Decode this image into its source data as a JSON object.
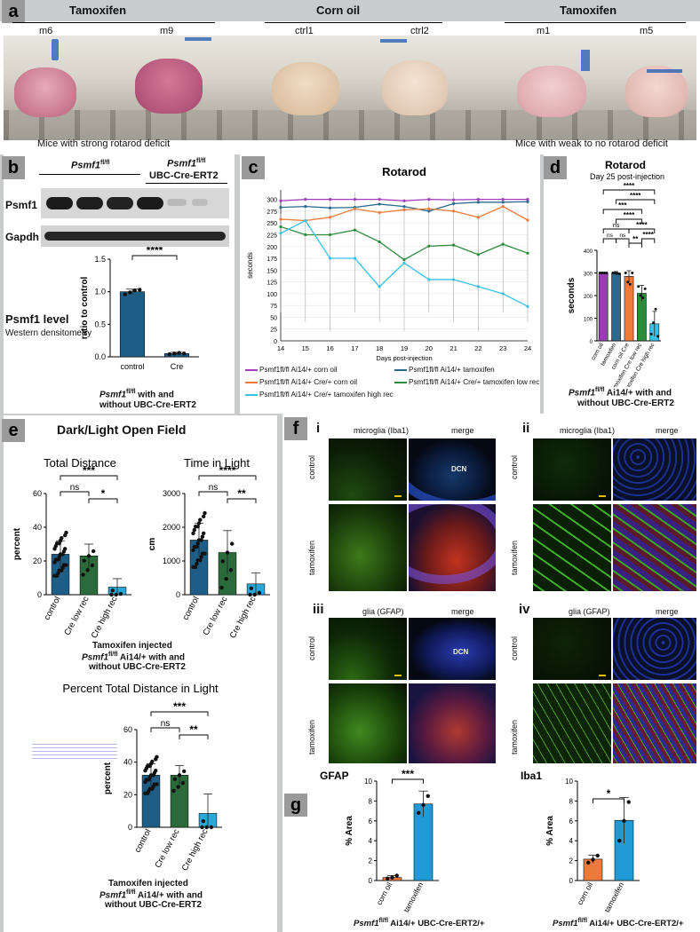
{
  "panel_a": {
    "label": "a",
    "groups": [
      "Tamoxifen",
      "Corn oil",
      "Tamoxifen"
    ],
    "tubes": [
      "m6",
      "m9",
      "ctrl1",
      "ctrl2",
      "m1",
      "m5"
    ],
    "caption_left": "Mice with strong rotarod deficit",
    "caption_right": "Mice with weak to no rotarod deficit"
  },
  "panel_b": {
    "label": "b",
    "genotype1_main": "Psmf1",
    "genotype1_sup": "fl/fl",
    "genotype2_main": "Psmf1",
    "genotype2_sup": "fl/fl",
    "genotype2_line2": "UBC-Cre-ERT2",
    "blot_psmf1": "Psmf1",
    "blot_gapdh": "Gapdh",
    "level_title": "Psmf1 level",
    "level_sub": "Western densitometry",
    "footer_main": "Psmf1",
    "footer_sup": "fl/fl",
    "footer_rest": " with and",
    "footer_line2": "without UBC-Cre-ERT2"
  },
  "panel_c": {
    "label": "c",
    "legend": [
      {
        "name": "Psmf1fl/fl Ai14/+ corn oil",
        "color": "#a23bbd"
      },
      {
        "name": "Psmf1fl/fl Ai14/+ tamoxifen",
        "color": "#2b6a8f"
      },
      {
        "name": "Psmf1fl/fl Ai14/+ Cre/+ corn oil",
        "color": "#ee7b3a"
      },
      {
        "name": "Psmf1fl/fl Ai14/+ Cre/+ tamoxifen low rec",
        "color": "#2e8b3c"
      },
      {
        "name": "Psmf1fl/fl Ai14/+ Cre/+ tamoxifen high rec",
        "color": "#39c1e6"
      }
    ]
  },
  "panel_d": {
    "label": "d",
    "subtitle": "Day 25 post-injection",
    "footer_main": "Psmf1",
    "footer_sup": "fl/fl",
    "footer_rest": " Ai14/+ with and",
    "footer_line2": "without UBC-Cre-ERT2",
    "sig": [
      "****",
      "****",
      "***",
      "****",
      "ns",
      "****",
      "****",
      "ns",
      "ns",
      "ns",
      "**"
    ]
  },
  "panel_e": {
    "label": "e",
    "title": "Dark/Light Open Field",
    "footer_l1": "Tamoxifen injected",
    "footer_main": "Psmf1",
    "footer_sup": "fl/fl",
    "footer_rest": " Ai14/+ with and",
    "footer_l3": "without UBC-Cre-ERT2",
    "sig_dist": [
      "***",
      "ns",
      "*"
    ],
    "sig_time": [
      "****",
      "ns",
      "**"
    ],
    "sig_pct": [
      "***",
      "ns",
      "**"
    ]
  },
  "panel_f": {
    "label": "f",
    "sub_i": "i",
    "sub_ii": "ii",
    "sub_iii": "iii",
    "sub_iv": "iv",
    "micro": "microglia (Iba1)",
    "glia": "glia (GFAP)",
    "merge": "merge",
    "row_control": "control",
    "row_tamoxifen": "tamoxifen",
    "dcn": "DCN"
  },
  "panel_g": {
    "label": "g",
    "sig_gfap": "***",
    "sig_iba1": "*",
    "footer_main": "Psmf1",
    "footer_sup": "fl/fl",
    "footer_rest": " Ai14/+ UBC-Cre-ERT2/+"
  },
  "chart_data": [
    {
      "id": "b",
      "type": "bar",
      "categories": [
        "control",
        "Cre"
      ],
      "values": [
        1.0,
        0.05
      ],
      "errors": [
        0.04,
        0.02
      ],
      "points": [
        [
          0.96,
          0.99,
          1.02,
          1.03
        ],
        [
          0.04,
          0.05,
          0.06,
          0.05
        ]
      ],
      "colors": [
        "#1e5d86",
        "#1e5d86"
      ],
      "title": "",
      "xlabel": "",
      "ylabel": "ratio to control",
      "ylim": [
        0,
        1.5
      ],
      "yticks": [
        0.0,
        0.5,
        1.0,
        1.5
      ],
      "sig": "****"
    },
    {
      "id": "c",
      "type": "line",
      "title": "Rotarod",
      "xlabel": "Days post-injection",
      "ylabel": "seconds",
      "x": [
        14,
        15,
        16,
        17,
        18,
        19,
        20,
        21,
        22,
        23,
        24
      ],
      "xlim": [
        14,
        24
      ],
      "ylim": [
        0,
        320
      ],
      "yticks": [
        0,
        25,
        50,
        75,
        100,
        125,
        150,
        175,
        200,
        225,
        250,
        275,
        300
      ],
      "series": [
        {
          "name": "Psmf1fl/fl Ai14/+ corn oil",
          "color": "#a23bbd",
          "values": [
            297,
            300,
            300,
            300,
            300,
            297,
            300,
            299,
            300,
            300,
            300
          ]
        },
        {
          "name": "Psmf1fl/fl Ai14/+ tamoxifen",
          "color": "#2b6a8f",
          "values": [
            283,
            285,
            282,
            283,
            290,
            285,
            275,
            291,
            294,
            294,
            295
          ]
        },
        {
          "name": "Psmf1fl/fl Ai14/+ Cre/+ corn oil",
          "color": "#ee7b3a",
          "values": [
            258,
            255,
            262,
            280,
            272,
            278,
            280,
            275,
            262,
            285,
            256
          ]
        },
        {
          "name": "Psmf1fl/fl Ai14/+ Cre/+ tamoxifen low rec",
          "color": "#2e8b3c",
          "values": [
            242,
            225,
            225,
            235,
            210,
            172,
            201,
            203,
            183,
            205,
            186
          ]
        },
        {
          "name": "Psmf1fl/fl Ai14/+ Cre/+ tamoxifen high rec",
          "color": "#39c1e6",
          "values": [
            228,
            255,
            175,
            175,
            115,
            165,
            130,
            130,
            115,
            100,
            73
          ]
        }
      ]
    },
    {
      "id": "d",
      "type": "bar",
      "title": "Rotarod",
      "categories": [
        "corn oil",
        "tamoxifen",
        "corn oil Cre",
        "tamoxifen Cre low rec",
        "tamoxifen Cre high rec"
      ],
      "values": [
        300,
        298,
        285,
        210,
        75
      ],
      "errors": [
        3,
        8,
        25,
        35,
        55
      ],
      "colors": [
        "#9b3bb5",
        "#2b6a8f",
        "#ee7b3a",
        "#2e8b3c",
        "#39c1e6"
      ],
      "ylabel": "seconds",
      "ylim": [
        0,
        400
      ],
      "yticks": [
        0,
        100,
        200,
        300,
        400
      ]
    },
    {
      "id": "e1",
      "type": "bar",
      "title": "Total Distance",
      "categories": [
        "control",
        "Cre low rec",
        "Cre high rec"
      ],
      "values": [
        24,
        23,
        4.5
      ],
      "errors": [
        8,
        7,
        5
      ],
      "colors": [
        "#1e5d86",
        "#2b6a3b",
        "#2aa7d8"
      ],
      "ylabel": "percent",
      "ylim": [
        0,
        60
      ],
      "yticks": [
        0,
        20,
        40,
        60
      ]
    },
    {
      "id": "e2",
      "type": "bar",
      "title": "Time in Light",
      "categories": [
        "control",
        "Cre low rec",
        "Cre high rec"
      ],
      "values": [
        1620,
        1250,
        320
      ],
      "errors": [
        500,
        650,
        330
      ],
      "colors": [
        "#1e5d86",
        "#2b6a3b",
        "#2aa7d8"
      ],
      "ylabel": "cm",
      "ylim": [
        0,
        3000
      ],
      "yticks": [
        0,
        1000,
        2000,
        3000
      ]
    },
    {
      "id": "e3",
      "type": "bar",
      "title": "Percent Total Distance in Light",
      "categories": [
        "control",
        "Cre low rec",
        "Cre high rec"
      ],
      "values": [
        32,
        32,
        8.5
      ],
      "errors": [
        7,
        6,
        12
      ],
      "colors": [
        "#1e5d86",
        "#2b6a3b",
        "#2aa7d8"
      ],
      "ylabel": "percent",
      "ylim": [
        0,
        60
      ],
      "yticks": [
        0,
        20,
        40,
        60
      ]
    },
    {
      "id": "g1",
      "type": "bar",
      "title": "GFAP",
      "categories": [
        "corn oil",
        "tamoxifen"
      ],
      "values": [
        0.3,
        7.7
      ],
      "errors": [
        0.2,
        1.3
      ],
      "points": [
        [
          0.2,
          0.3,
          0.5
        ],
        [
          6.8,
          7.6,
          8.5
        ]
      ],
      "colors": [
        "#ec7a3a",
        "#1f9ad6"
      ],
      "ylabel": "% Area",
      "ylim": [
        0,
        10
      ],
      "yticks": [
        0,
        2,
        4,
        6,
        8,
        10
      ]
    },
    {
      "id": "g2",
      "type": "bar",
      "title": "Iba1",
      "categories": [
        "corn oil",
        "tamoxifen"
      ],
      "values": [
        2.15,
        6.05
      ],
      "errors": [
        0.4,
        2.3
      ],
      "points": [
        [
          1.8,
          2.1,
          2.5
        ],
        [
          4.0,
          6.0,
          7.9
        ]
      ],
      "colors": [
        "#ec7a3a",
        "#1f9ad6"
      ],
      "ylabel": "% Area",
      "ylim": [
        0,
        10
      ],
      "yticks": [
        0,
        2,
        4,
        6,
        8,
        10
      ]
    }
  ]
}
